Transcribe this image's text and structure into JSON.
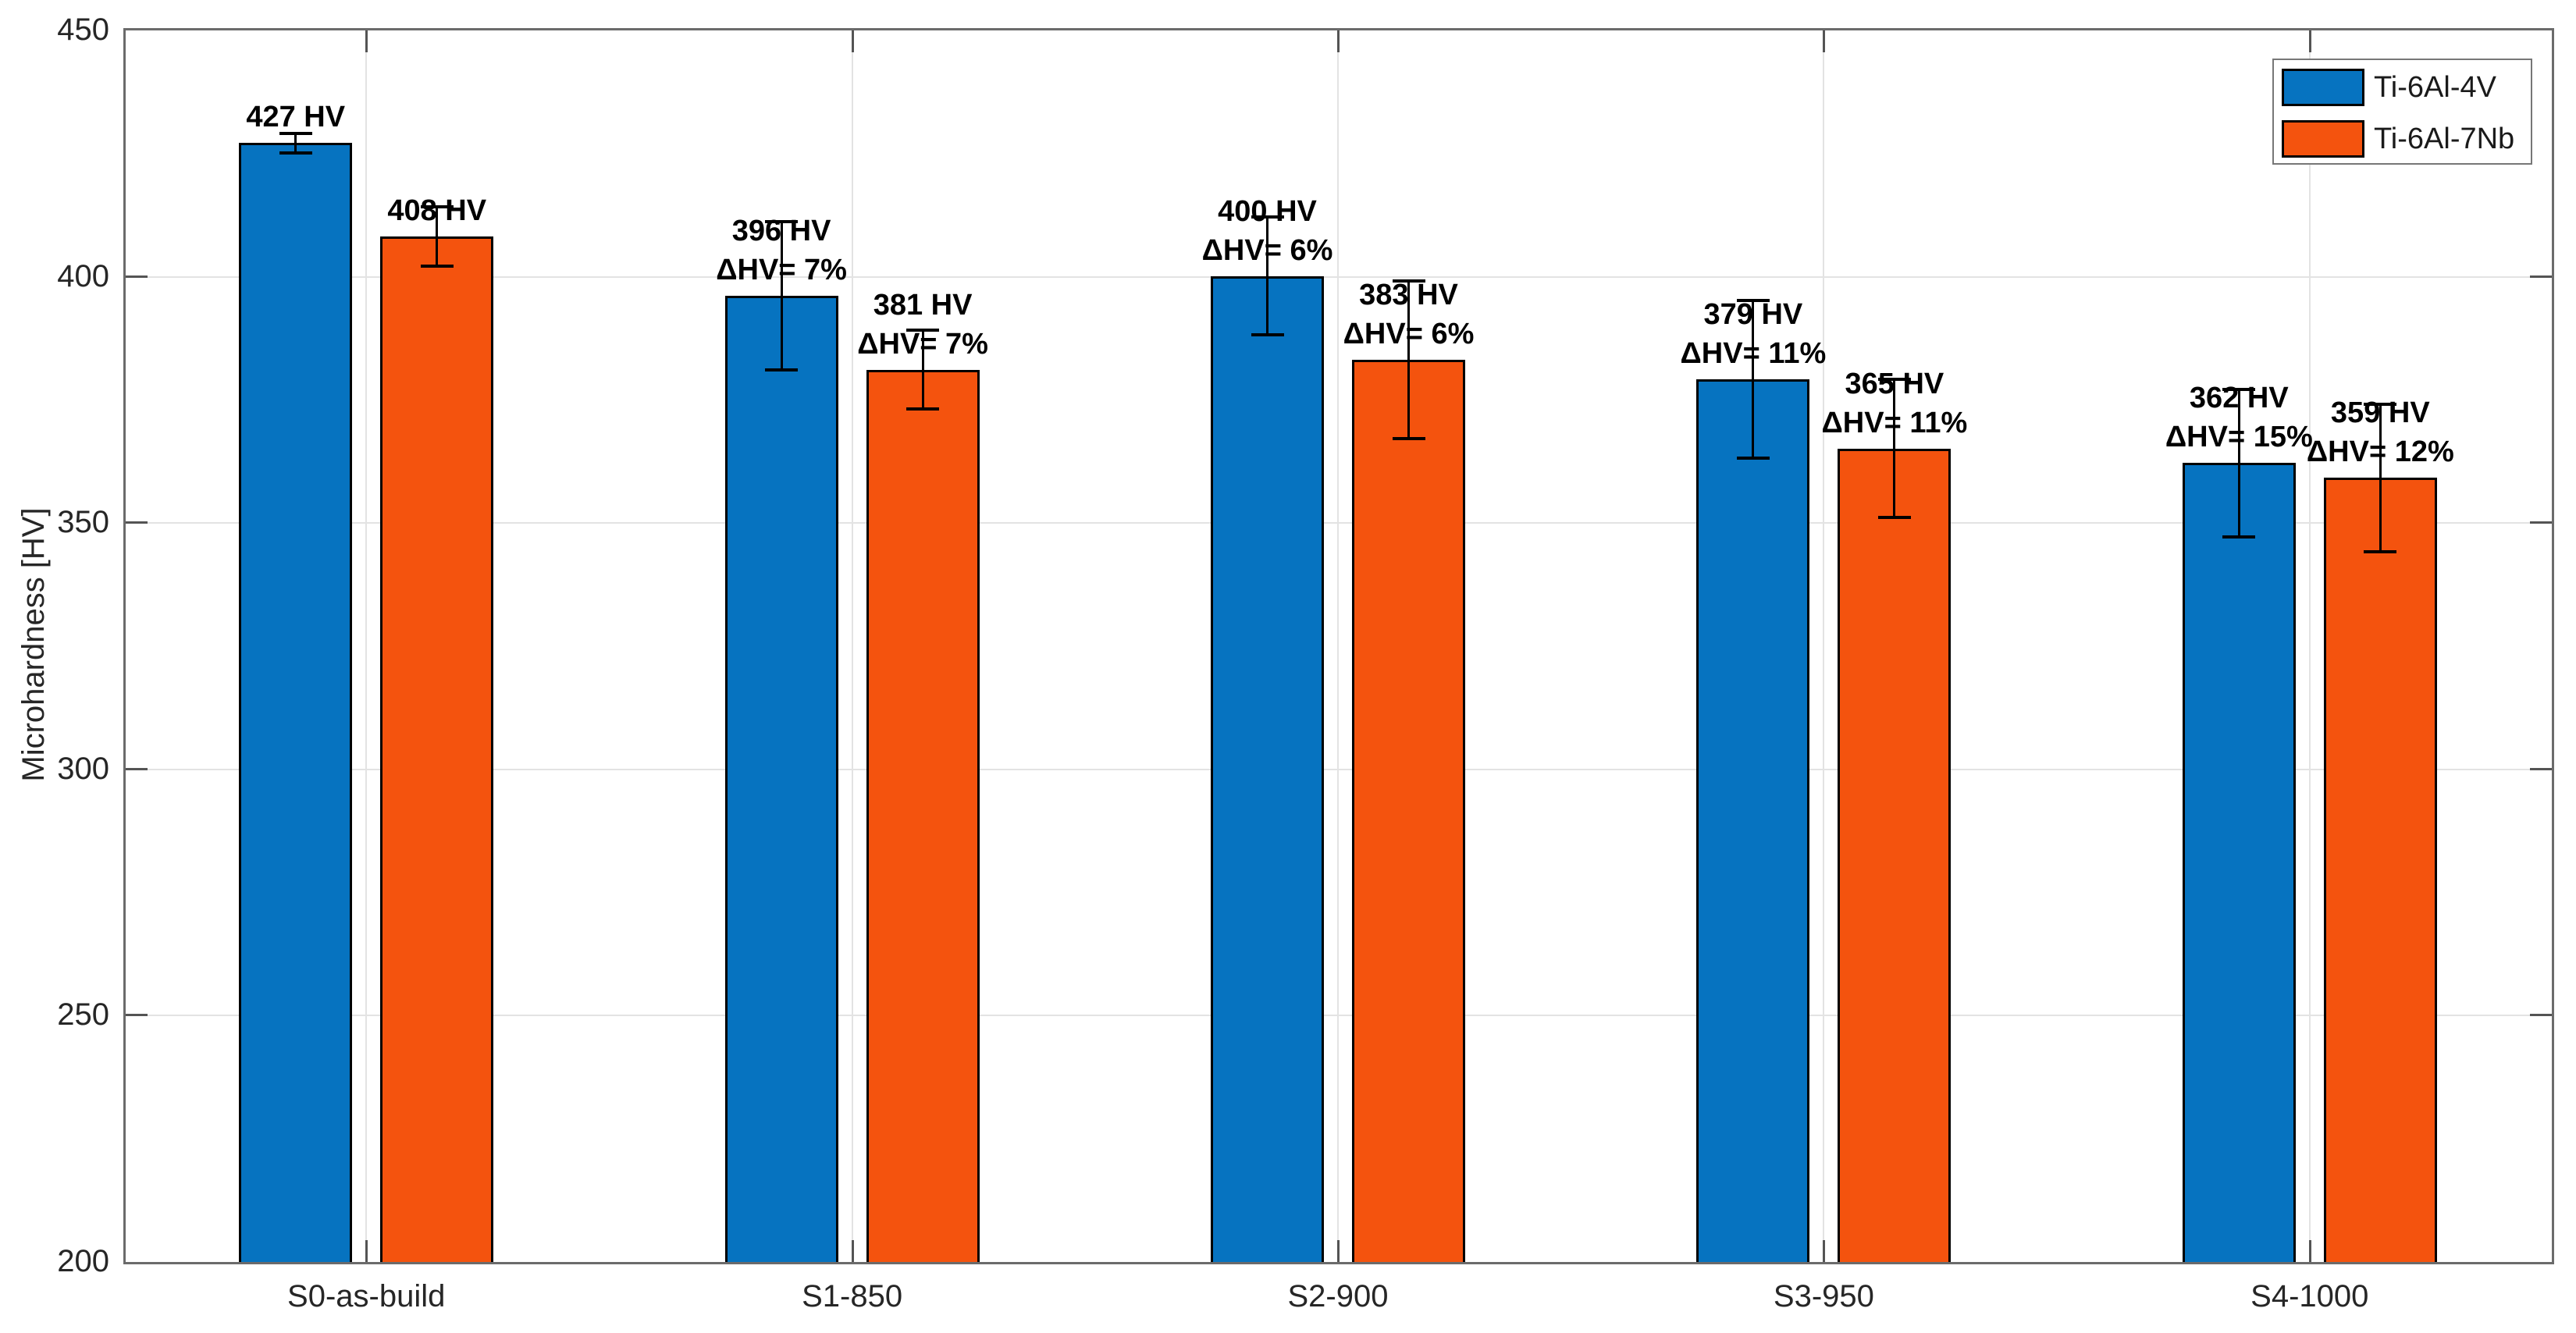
{
  "figure": {
    "background": "#ffffff"
  },
  "chart_data": {
    "type": "bar",
    "title": "",
    "xlabel": "",
    "ylabel": "Microhardness [HV]",
    "ylim": [
      200,
      450
    ],
    "yticks": [
      200,
      250,
      300,
      350,
      400,
      450
    ],
    "grid": true,
    "legend_position": "top-right",
    "categories": [
      "S0-as-build",
      "S1-850",
      "S2-900",
      "S3-950",
      "S4-1000"
    ],
    "series": [
      {
        "name": "Ti-6Al-4V",
        "color": "#0673C0",
        "values": [
          427,
          396,
          400,
          379,
          362
        ],
        "value_labels": [
          "427 HV",
          "396 HV",
          "400 HV",
          "379 HV",
          "362 HV"
        ],
        "delta_labels": [
          "",
          "ΔHV= 7%",
          "ΔHV= 6%",
          "ΔHV= 11%",
          "ΔHV= 15%"
        ],
        "errors": [
          2,
          15,
          12,
          16,
          15
        ]
      },
      {
        "name": "Ti-6Al-7Nb",
        "color": "#F4530E",
        "values": [
          408,
          381,
          383,
          365,
          359
        ],
        "value_labels": [
          "408 HV",
          "381 HV",
          "383 HV",
          "365 HV",
          "359 HV"
        ],
        "delta_labels": [
          "",
          "ΔHV= 7%",
          "ΔHV= 6%",
          "ΔHV= 11%",
          "ΔHV= 12%"
        ],
        "errors": [
          6,
          8,
          16,
          14,
          15
        ]
      }
    ],
    "colors": {
      "frame": "#6b6b6b",
      "grid": "#e3e3e3",
      "tick": "#545454",
      "text": "#262626",
      "bar_edge": "#000000",
      "error_bar": "#000000",
      "legend_border": "#777777"
    }
  }
}
